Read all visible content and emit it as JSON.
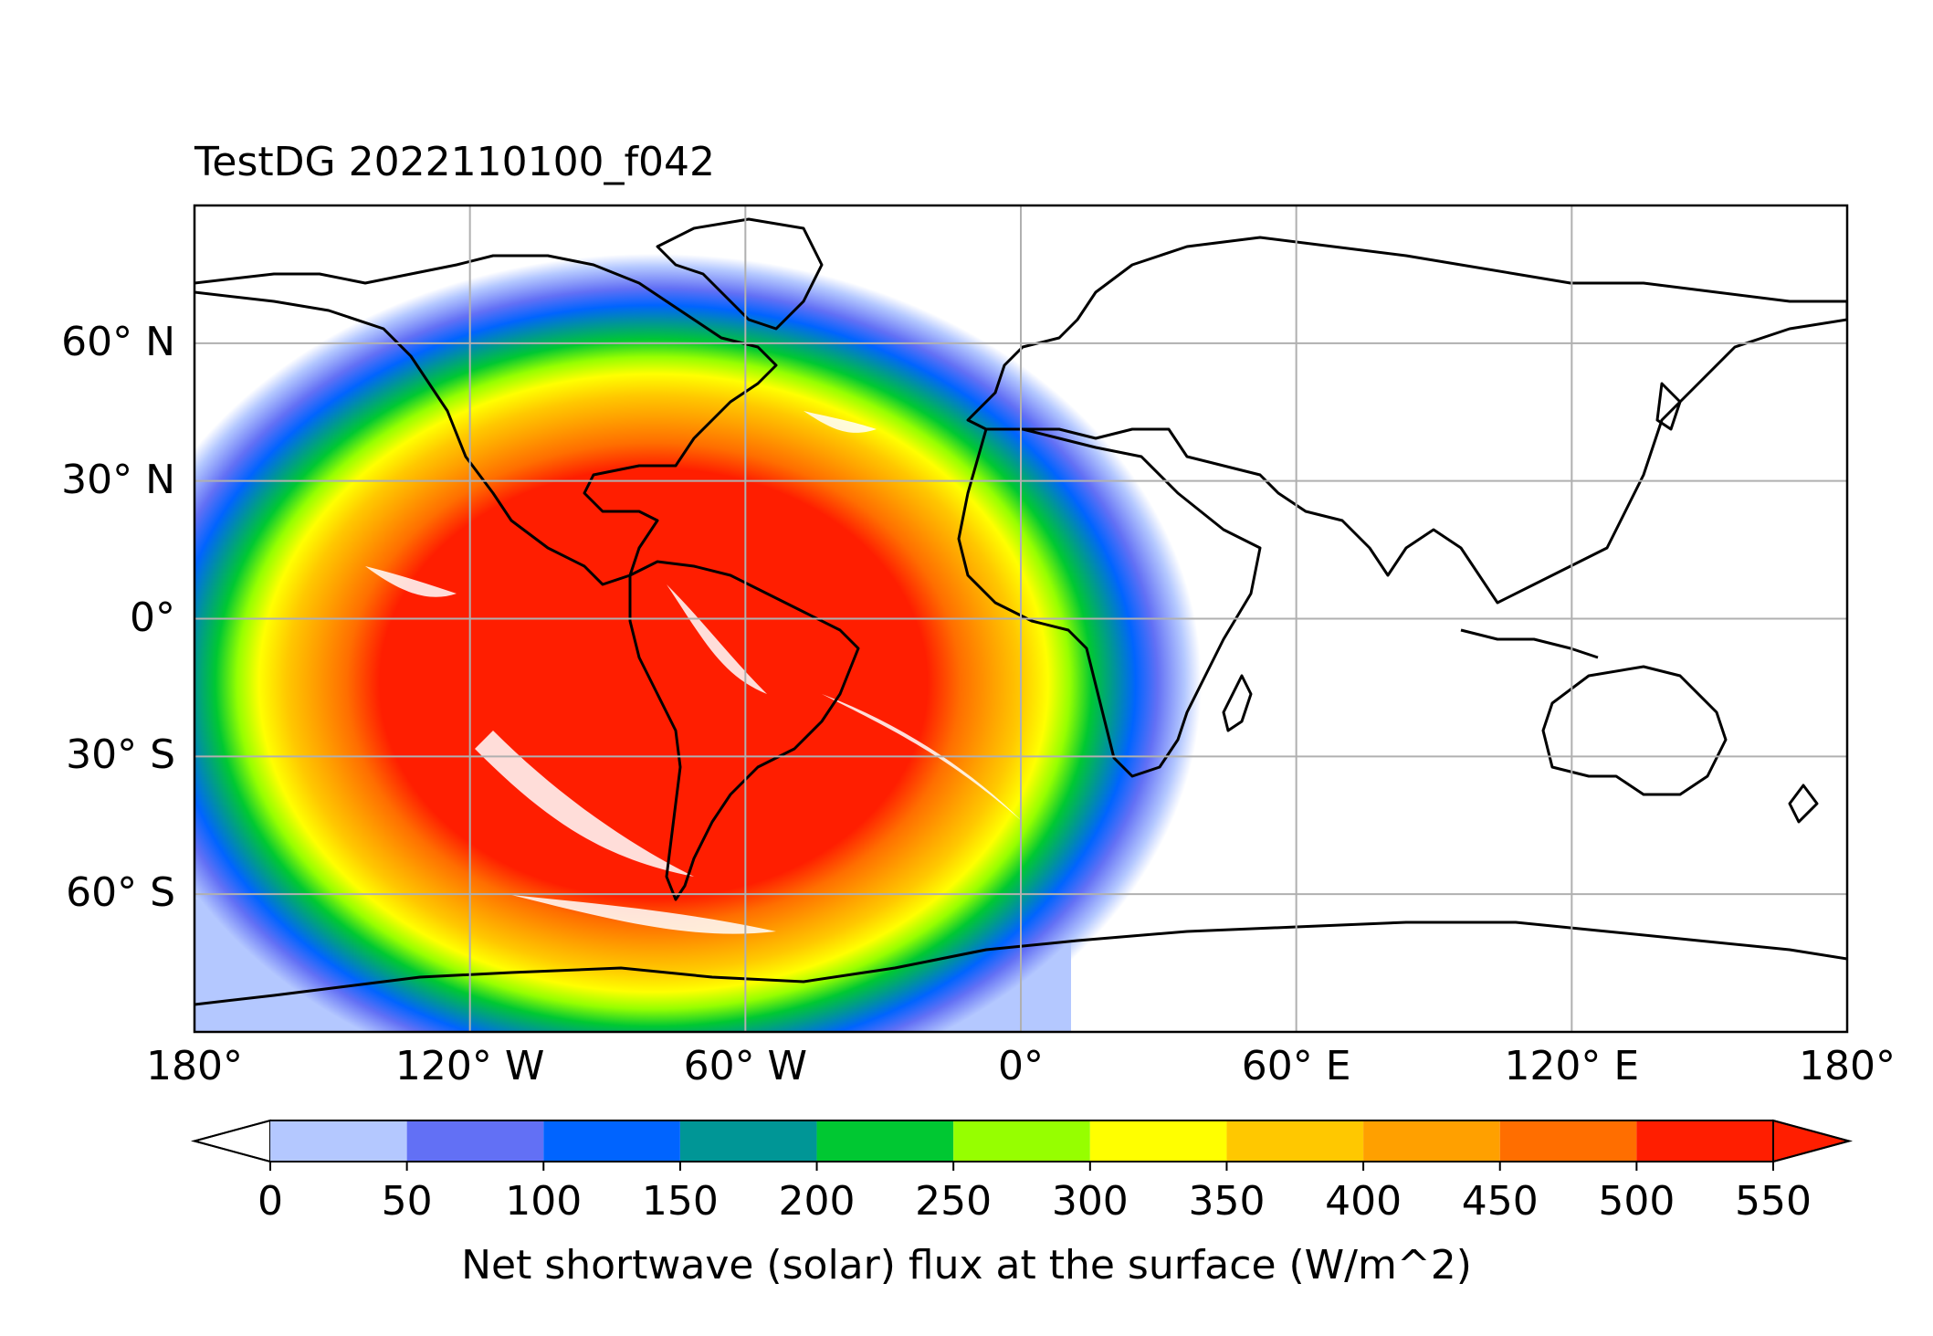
{
  "title": "TestDG 2022110100_f042",
  "lat_ticks": [
    {
      "value": 60,
      "label": "60° N"
    },
    {
      "value": 30,
      "label": "30° N"
    },
    {
      "value": 0,
      "label": "0°"
    },
    {
      "value": -30,
      "label": "30° S"
    },
    {
      "value": -60,
      "label": "60° S"
    }
  ],
  "lon_ticks": [
    {
      "value": -180,
      "label": "180°"
    },
    {
      "value": -120,
      "label": "120° W"
    },
    {
      "value": -60,
      "label": "60° W"
    },
    {
      "value": 0,
      "label": "0°"
    },
    {
      "value": 60,
      "label": "60° E"
    },
    {
      "value": 120,
      "label": "120° E"
    },
    {
      "value": 180,
      "label": "180°"
    }
  ],
  "colorbar": {
    "label": "Net shortwave (solar) flux at the surface (W/m^2)",
    "ticks": [
      "0",
      "50",
      "100",
      "150",
      "200",
      "250",
      "300",
      "350",
      "400",
      "450",
      "500",
      "550"
    ],
    "levels": [
      0,
      50,
      100,
      150,
      200,
      250,
      300,
      350,
      400,
      450,
      500,
      550
    ],
    "colors": [
      "#ffffff",
      "#b4c8ff",
      "#6270f5",
      "#0064ff",
      "#009696",
      "#00c832",
      "#96ff00",
      "#ffff00",
      "#ffc800",
      "#ffa000",
      "#ff6e00",
      "#ff1e00"
    ],
    "extend": "both"
  },
  "map": {
    "projection": "PlateCarree",
    "extent": {
      "lon": [
        -180,
        180
      ],
      "lat": [
        -90,
        90
      ]
    },
    "gridlines": true,
    "subsolar_point": {
      "lon": -80,
      "lat": -14
    }
  }
}
